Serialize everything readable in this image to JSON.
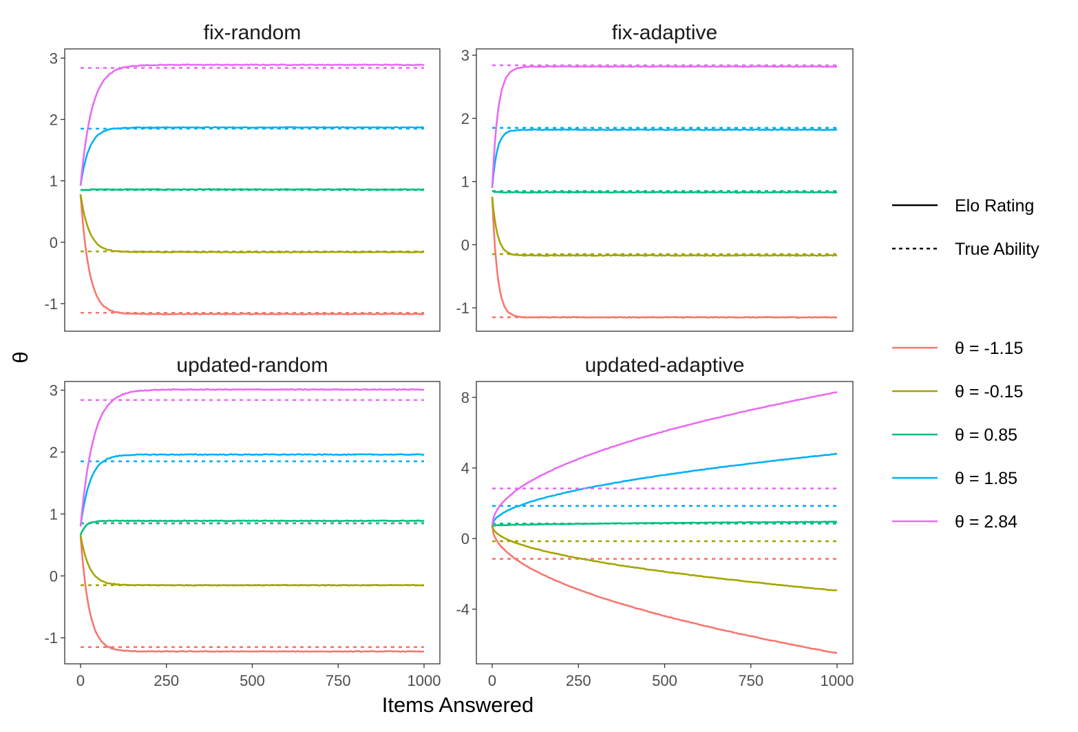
{
  "chart_data": {
    "type": "line",
    "facet_layout": "2x2",
    "xlabel": "Items Answered",
    "ylabel": "θ",
    "x_ticks": [
      0,
      250,
      500,
      750,
      1000
    ],
    "xlim": [
      0,
      1000
    ],
    "grid": false,
    "legend": {
      "placement": "right",
      "linetype_entries": [
        {
          "label": "Elo Rating",
          "style": "solid"
        },
        {
          "label": "True Ability",
          "style": "dotted"
        }
      ],
      "color_entries": [
        {
          "label": "θ = -1.15",
          "color": "#F8766D"
        },
        {
          "label": "θ = -0.15",
          "color": "#A3A500"
        },
        {
          "label": "θ = 0.85",
          "color": "#00BF7D"
        },
        {
          "label": "θ = 1.85",
          "color": "#00B0F6"
        },
        {
          "label": "θ = 2.84",
          "color": "#E76BF3"
        }
      ]
    },
    "panels": [
      {
        "title": "fix-random",
        "ylim": [
          -1.45,
          3.15
        ],
        "y_ticks": [
          -1,
          0,
          1,
          2,
          3
        ],
        "series": [
          {
            "true": -1.15,
            "start": 0.78,
            "final": -1.17,
            "shape": "exp",
            "tau": 25
          },
          {
            "true": -0.15,
            "start": 0.78,
            "final": -0.16,
            "shape": "exp",
            "tau": 25
          },
          {
            "true": 0.85,
            "start": 0.85,
            "final": 0.86,
            "shape": "exp",
            "tau": 20
          },
          {
            "true": 1.85,
            "start": 0.92,
            "final": 1.87,
            "shape": "exp",
            "tau": 25
          },
          {
            "true": 2.84,
            "start": 0.92,
            "final": 2.89,
            "shape": "exp",
            "tau": 33
          }
        ]
      },
      {
        "title": "fix-adaptive",
        "ylim": [
          -1.37,
          3.1
        ],
        "y_ticks": [
          -1,
          0,
          1,
          2,
          3
        ],
        "series": [
          {
            "true": -1.15,
            "start": 0.76,
            "final": -1.15,
            "shape": "exp",
            "tau": 15
          },
          {
            "true": -0.15,
            "start": 0.76,
            "final": -0.17,
            "shape": "exp",
            "tau": 15
          },
          {
            "true": 0.85,
            "start": 0.85,
            "final": 0.83,
            "shape": "exp",
            "tau": 10
          },
          {
            "true": 1.85,
            "start": 0.9,
            "final": 1.82,
            "shape": "exp",
            "tau": 14
          },
          {
            "true": 2.84,
            "start": 0.9,
            "final": 2.82,
            "shape": "exp",
            "tau": 17
          }
        ]
      },
      {
        "title": "updated-random",
        "ylim": [
          -1.42,
          3.14
        ],
        "y_ticks": [
          -1,
          0,
          1,
          2,
          3
        ],
        "series": [
          {
            "true": -1.15,
            "start": 0.66,
            "final": -1.22,
            "shape": "exp",
            "tau": 25
          },
          {
            "true": -0.15,
            "start": 0.66,
            "final": -0.15,
            "shape": "exp",
            "tau": 25
          },
          {
            "true": 0.85,
            "start": 0.66,
            "final": 0.89,
            "shape": "exp",
            "tau": 15
          },
          {
            "true": 1.85,
            "start": 0.8,
            "final": 1.96,
            "shape": "exp",
            "tau": 28
          },
          {
            "true": 2.84,
            "start": 0.8,
            "final": 3.01,
            "shape": "exp",
            "tau": 37
          }
        ]
      },
      {
        "title": "updated-adaptive",
        "ylim": [
          -7.1,
          8.9
        ],
        "y_ticks": [
          -4,
          0,
          4,
          8
        ],
        "series": [
          {
            "true": -1.15,
            "start": 0.72,
            "final": -6.5,
            "shape": "sqrt"
          },
          {
            "true": -0.15,
            "start": 0.72,
            "final": -2.95,
            "shape": "sqrt"
          },
          {
            "true": 0.85,
            "start": 0.72,
            "final": 0.95,
            "shape": "sqrt"
          },
          {
            "true": 1.85,
            "start": 0.72,
            "final": 4.8,
            "shape": "sqrt"
          },
          {
            "true": 2.84,
            "start": 0.72,
            "final": 8.3,
            "shape": "sqrt"
          }
        ]
      }
    ]
  }
}
